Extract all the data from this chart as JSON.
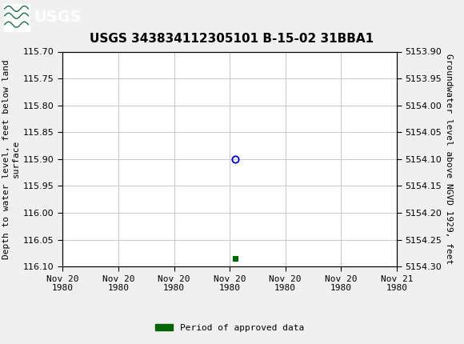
{
  "title": "USGS 343834112305101 B-15-02 31BBA1",
  "ylabel_left": "Depth to water level, feet below land\nsurface",
  "ylabel_right": "Groundwater level above NGVD 1929, feet",
  "ylim_left": [
    115.7,
    116.1
  ],
  "ylim_right": [
    5154.3,
    5153.9
  ],
  "yticks_left": [
    115.7,
    115.75,
    115.8,
    115.85,
    115.9,
    115.95,
    116.0,
    116.05,
    116.1
  ],
  "yticks_right": [
    5154.3,
    5154.25,
    5154.2,
    5154.15,
    5154.1,
    5154.05,
    5154.0,
    5153.95,
    5153.9
  ],
  "xlim": [
    0,
    6
  ],
  "xtick_labels": [
    "Nov 20\n1980",
    "Nov 20\n1980",
    "Nov 20\n1980",
    "Nov 20\n1980",
    "Nov 20\n1980",
    "Nov 20\n1980",
    "Nov 21\n1980"
  ],
  "xtick_positions": [
    0,
    1,
    2,
    3,
    4,
    5,
    6
  ],
  "data_point_x": 3.1,
  "data_point_y": 115.9,
  "approved_point_x": 3.1,
  "approved_point_y": 116.085,
  "marker_color": "#0000cc",
  "approved_color": "#006600",
  "background_color": "#f0f0f0",
  "plot_bg_color": "#ffffff",
  "grid_color": "#c8c8c8",
  "header_color": "#1a7040",
  "title_fontsize": 11,
  "axis_label_fontsize": 8,
  "tick_fontsize": 8,
  "legend_label": "Period of approved data"
}
